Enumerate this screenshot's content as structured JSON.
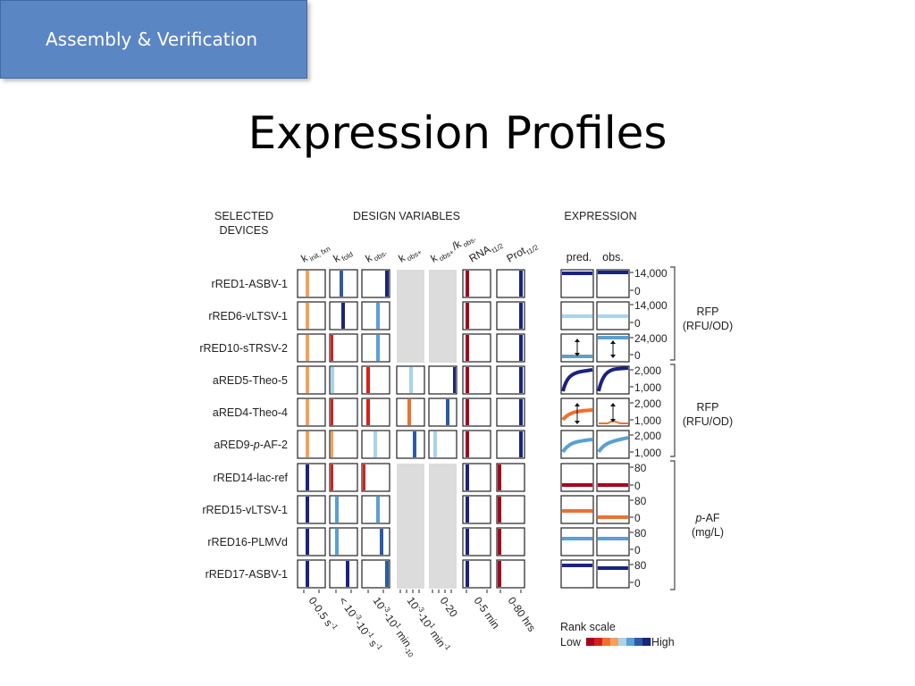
{
  "banner": {
    "label": "Assembly & Verification"
  },
  "slide": {
    "title": "Expression Profiles"
  },
  "figure": {
    "headers": {
      "devices": [
        "SELECTED",
        "DEVICES"
      ],
      "design": "DESIGN VARIABLES",
      "expression": "EXPRESSION"
    },
    "variable_labels": [
      {
        "main": "k",
        "sub": "init, fxn"
      },
      {
        "main": "k",
        "sub": "fold"
      },
      {
        "main": "k",
        "sub": "obs-"
      },
      {
        "main": "k",
        "sub": "obs+"
      },
      {
        "main": "k",
        "sub": "obs+",
        "main2": "/k",
        "sub2": "obs-"
      },
      {
        "main": "RNA",
        "sub": "t1/2"
      },
      {
        "main": "Prot",
        "sub": "t1/2"
      }
    ],
    "expression_columns": [
      "pred.",
      "obs."
    ],
    "devices": [
      {
        "name": "rRED1-ASBV-1"
      },
      {
        "name": "rRED6-vLTSV-1"
      },
      {
        "name": "rRED10-sTRSV-2"
      },
      {
        "name": "aRED5-Theo-5"
      },
      {
        "name": "aRED4-Theo-4"
      },
      {
        "name_prefix": "aRED9-",
        "name_italic": "p",
        "name_suffix": "-AF-2"
      },
      {
        "name": "rRED14-lac-ref"
      },
      {
        "name": "rRED15-vLTSV-1"
      },
      {
        "name": "rRED16-PLMVd"
      },
      {
        "name": "rRED17-ASBV-1"
      }
    ],
    "expression_ticks": [
      {
        "top": "14,000",
        "bottom": "0"
      },
      {
        "top": "14,000",
        "bottom": "0"
      },
      {
        "top": "24,000",
        "bottom": "0"
      },
      {
        "top": "2,000",
        "bottom": "1,000"
      },
      {
        "top": "2,000",
        "bottom": "1,000"
      },
      {
        "top": "2,000",
        "bottom": "1,000"
      },
      {
        "top": "80",
        "bottom": "0"
      },
      {
        "top": "80",
        "bottom": "0"
      },
      {
        "top": "80",
        "bottom": "0"
      },
      {
        "top": "80",
        "bottom": "0"
      }
    ],
    "expression_groups": [
      {
        "line1": "RFP",
        "line2": "(RFU/OD)"
      },
      {
        "line1": "RFP",
        "line2": "(RFU/OD)"
      },
      {
        "line1_italic": "p",
        "line1": "-AF",
        "line2": "(mg/L)"
      }
    ],
    "range_labels": [
      {
        "text": "0-0.5 s",
        "sup": "-1"
      },
      {
        "text": "< 10",
        "sup": "-3",
        "text2": "-10",
        "sup2": "-1",
        "text3": " s",
        "sup3": "-1"
      },
      {
        "text": "10",
        "sup": "-3",
        "text2": "-10",
        "sup2": "1",
        "text3": " min",
        "sup3": "-10"
      },
      {
        "text": "10",
        "sup": "-3",
        "text2": "-10",
        "sup2": "1",
        "text3": " min",
        "sup3": "-1"
      },
      {
        "text": "0-20"
      },
      {
        "text": "0-5 min"
      },
      {
        "text": "0-80 hrs"
      }
    ],
    "rank_scale": {
      "title": "Rank scale",
      "low": "Low",
      "high": "High",
      "colors": [
        "#a8001c",
        "#d6201c",
        "#f07030",
        "#f5a05a",
        "#a8d4ea",
        "#5aa0d2",
        "#2c5aa8",
        "#1a237e"
      ]
    }
  }
}
